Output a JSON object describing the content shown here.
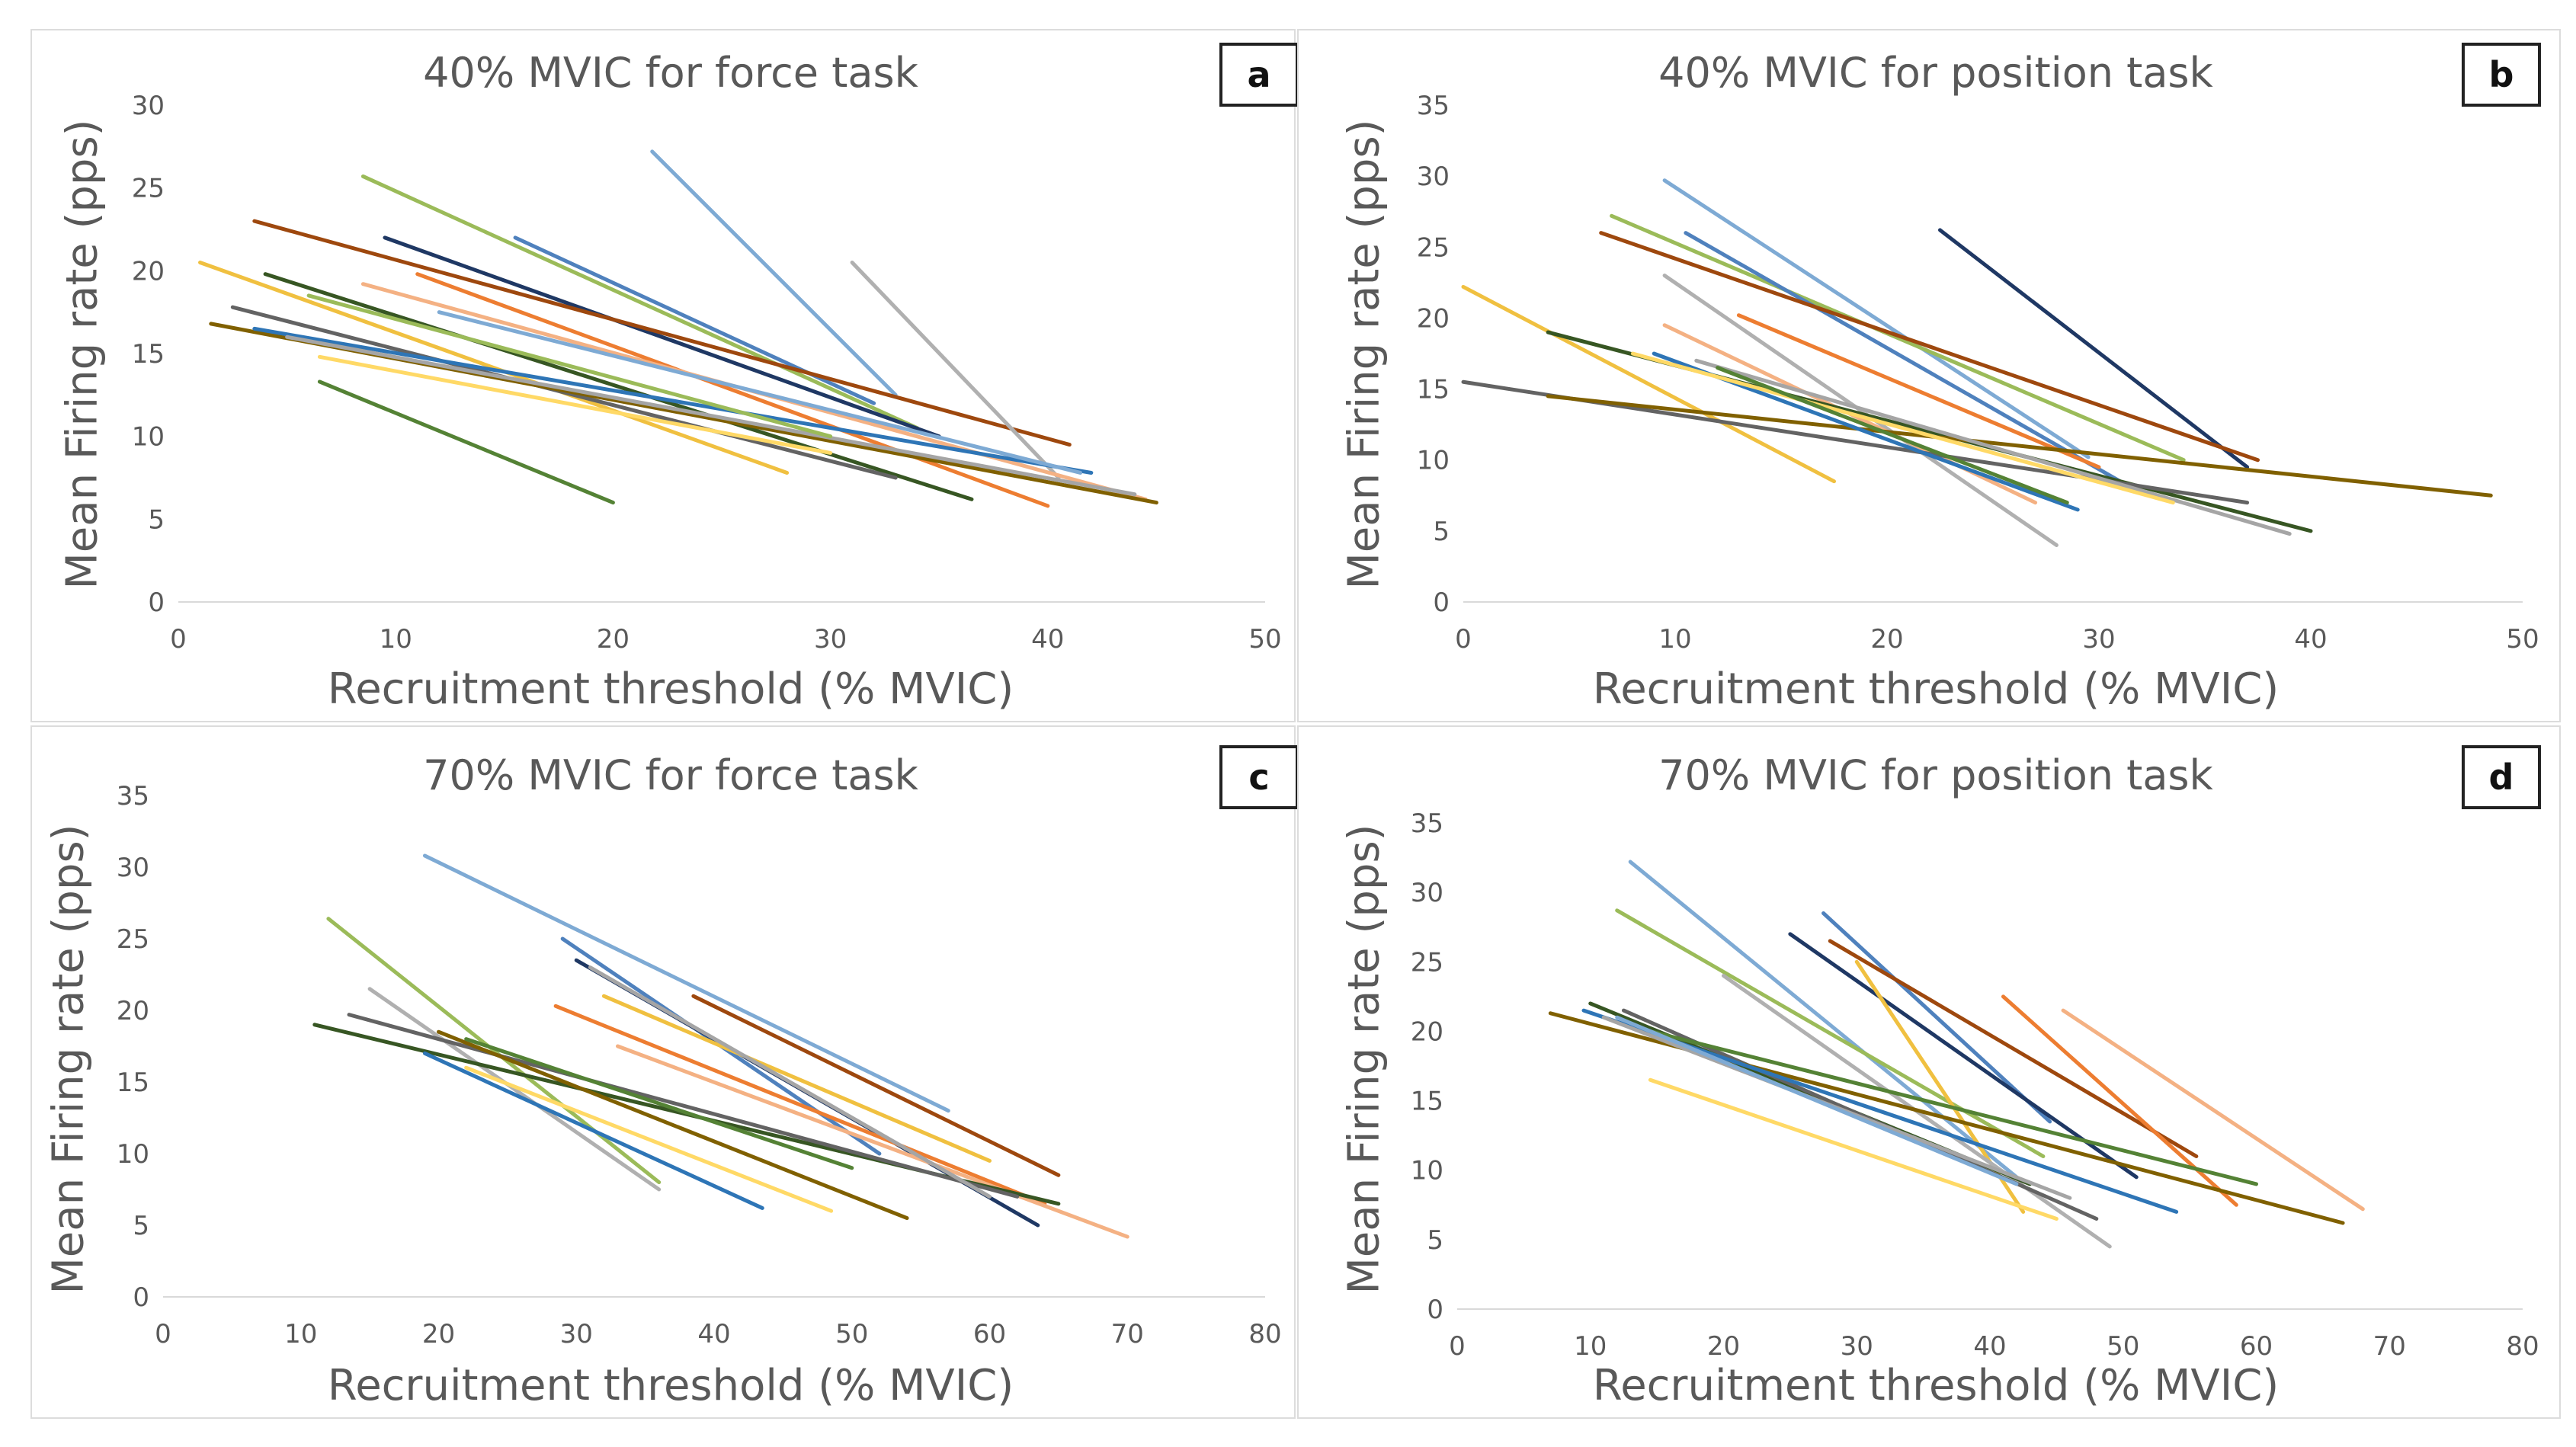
{
  "colors": [
    "#7eaad4",
    "#9bbb59",
    "#4f81bd",
    "#1f3864",
    "#9e480e",
    "#f0c040",
    "#b0b0b0",
    "#ed7d31",
    "#f4b183",
    "#375623",
    "#636363",
    "#806000",
    "#2e75b6",
    "#a5a5a5",
    "#ffd966",
    "#548235"
  ],
  "chart_data": [
    {
      "type": "line",
      "label": "a",
      "title": "40% MVIC for force task",
      "xlabel": "Recruitment threshold (% MVIC)",
      "ylabel": "Mean Firing rate (pps)",
      "xlim": [
        0,
        50
      ],
      "ylim": [
        0,
        30
      ],
      "xticks": [
        0,
        10,
        20,
        30,
        40,
        50
      ],
      "yticks": [
        0,
        5,
        10,
        15,
        20,
        25,
        30
      ],
      "series": [
        {
          "x": [
            21.8,
            33.0
          ],
          "y": [
            27.2,
            12.5
          ]
        },
        {
          "x": [
            8.5,
            34.0
          ],
          "y": [
            25.7,
            10.5
          ]
        },
        {
          "x": [
            15.5,
            32.0
          ],
          "y": [
            22.0,
            12.0
          ]
        },
        {
          "x": [
            9.5,
            35.0
          ],
          "y": [
            22.0,
            10.0
          ]
        },
        {
          "x": [
            3.5,
            41.0
          ],
          "y": [
            23.0,
            9.5
          ]
        },
        {
          "x": [
            1.0,
            28.0
          ],
          "y": [
            20.5,
            7.8
          ]
        },
        {
          "x": [
            31.0,
            40.5
          ],
          "y": [
            20.5,
            7.5
          ]
        },
        {
          "x": [
            11.0,
            40.0
          ],
          "y": [
            19.8,
            5.8
          ]
        },
        {
          "x": [
            8.5,
            44.5
          ],
          "y": [
            19.2,
            6.2
          ]
        },
        {
          "x": [
            4.0,
            36.5
          ],
          "y": [
            19.8,
            6.2
          ]
        },
        {
          "x": [
            2.5,
            33.0
          ],
          "y": [
            17.8,
            7.5
          ]
        },
        {
          "x": [
            1.5,
            45.0
          ],
          "y": [
            16.8,
            6.0
          ]
        },
        {
          "x": [
            3.5,
            42.0
          ],
          "y": [
            16.5,
            7.8
          ]
        },
        {
          "x": [
            5.0,
            44.0
          ],
          "y": [
            16.0,
            6.5
          ]
        },
        {
          "x": [
            6.5,
            30.0
          ],
          "y": [
            14.8,
            9.0
          ]
        },
        {
          "x": [
            6.5,
            20.0
          ],
          "y": [
            13.3,
            6.0
          ]
        },
        {
          "x": [
            12.0,
            41.5
          ],
          "y": [
            17.5,
            7.8
          ]
        },
        {
          "x": [
            6.0,
            30.0
          ],
          "y": [
            18.5,
            10.0
          ]
        }
      ]
    },
    {
      "type": "line",
      "label": "b",
      "title": "40% MVIC for position task",
      "xlabel": "Recruitment threshold (% MVIC)",
      "ylabel": "Mean Firing rate (pps)",
      "xlim": [
        0,
        50
      ],
      "ylim": [
        0,
        35
      ],
      "xticks": [
        0,
        10,
        20,
        30,
        40,
        50
      ],
      "yticks": [
        0,
        5,
        10,
        15,
        20,
        25,
        30,
        35
      ],
      "series": [
        {
          "x": [
            9.5,
            29.5
          ],
          "y": [
            29.7,
            10.2
          ]
        },
        {
          "x": [
            7.0,
            34.0
          ],
          "y": [
            27.2,
            10.0
          ]
        },
        {
          "x": [
            10.5,
            31.0
          ],
          "y": [
            26.0,
            8.5
          ]
        },
        {
          "x": [
            22.5,
            37.0
          ],
          "y": [
            26.2,
            9.5
          ]
        },
        {
          "x": [
            6.5,
            37.5
          ],
          "y": [
            26.0,
            10.0
          ]
        },
        {
          "x": [
            0.0,
            17.5
          ],
          "y": [
            22.2,
            8.5
          ]
        },
        {
          "x": [
            9.5,
            28.0
          ],
          "y": [
            23.0,
            4.0
          ]
        },
        {
          "x": [
            13.0,
            30.0
          ],
          "y": [
            20.2,
            9.5
          ]
        },
        {
          "x": [
            9.5,
            27.0
          ],
          "y": [
            19.5,
            7.0
          ]
        },
        {
          "x": [
            4.0,
            40.0
          ],
          "y": [
            19.0,
            5.0
          ]
        },
        {
          "x": [
            0.0,
            37.0
          ],
          "y": [
            15.5,
            7.0
          ]
        },
        {
          "x": [
            4.0,
            48.5
          ],
          "y": [
            14.5,
            7.5
          ]
        },
        {
          "x": [
            9.0,
            29.0
          ],
          "y": [
            17.5,
            6.5
          ]
        },
        {
          "x": [
            11.0,
            39.0
          ],
          "y": [
            17.0,
            4.8
          ]
        },
        {
          "x": [
            8.0,
            33.5
          ],
          "y": [
            17.5,
            7.0
          ]
        },
        {
          "x": [
            12.0,
            28.5
          ],
          "y": [
            16.5,
            7.0
          ]
        }
      ]
    },
    {
      "type": "line",
      "label": "c",
      "title": "70% MVIC for force task",
      "xlabel": "Recruitment threshold (% MVIC)",
      "ylabel": "Mean Firing rate (pps)",
      "xlim": [
        0,
        80
      ],
      "ylim": [
        0,
        35
      ],
      "xticks": [
        0,
        10,
        20,
        30,
        40,
        50,
        60,
        70,
        80
      ],
      "yticks": [
        0,
        5,
        10,
        15,
        20,
        25,
        30,
        35
      ],
      "series": [
        {
          "x": [
            19.0,
            57.0
          ],
          "y": [
            30.8,
            13.0
          ]
        },
        {
          "x": [
            12.0,
            36.0
          ],
          "y": [
            26.4,
            8.0
          ]
        },
        {
          "x": [
            29.0,
            52.0
          ],
          "y": [
            25.0,
            10.0
          ]
        },
        {
          "x": [
            30.0,
            63.5
          ],
          "y": [
            23.5,
            5.0
          ]
        },
        {
          "x": [
            38.5,
            65.0
          ],
          "y": [
            21.0,
            8.5
          ]
        },
        {
          "x": [
            32.0,
            60.0
          ],
          "y": [
            21.0,
            9.5
          ]
        },
        {
          "x": [
            15.0,
            36.0
          ],
          "y": [
            21.5,
            7.5
          ]
        },
        {
          "x": [
            28.5,
            64.0
          ],
          "y": [
            20.3,
            6.5
          ]
        },
        {
          "x": [
            33.0,
            70.0
          ],
          "y": [
            17.5,
            4.2
          ]
        },
        {
          "x": [
            11.0,
            65.0
          ],
          "y": [
            19.0,
            6.5
          ]
        },
        {
          "x": [
            13.5,
            62.0
          ],
          "y": [
            19.7,
            7.0
          ]
        },
        {
          "x": [
            20.0,
            54.0
          ],
          "y": [
            18.5,
            5.5
          ]
        },
        {
          "x": [
            19.0,
            43.5
          ],
          "y": [
            17.0,
            6.2
          ]
        },
        {
          "x": [
            31.0,
            60.0
          ],
          "y": [
            23.0,
            7.0
          ]
        },
        {
          "x": [
            22.0,
            48.5
          ],
          "y": [
            16.0,
            6.0
          ]
        },
        {
          "x": [
            22.0,
            50.0
          ],
          "y": [
            18.0,
            9.0
          ]
        }
      ]
    },
    {
      "type": "line",
      "label": "d",
      "title": "70% MVIC for position task",
      "xlabel": "Recruitment threshold (% MVIC)",
      "ylabel": "Mean Firing rate (pps)",
      "xlim": [
        0,
        80
      ],
      "ylim": [
        0,
        35
      ],
      "xticks": [
        0,
        10,
        20,
        30,
        40,
        50,
        60,
        70,
        80
      ],
      "yticks": [
        0,
        5,
        10,
        15,
        20,
        25,
        30,
        35
      ],
      "series": [
        {
          "x": [
            13.0,
            42.0
          ],
          "y": [
            32.2,
            9.5
          ]
        },
        {
          "x": [
            12.0,
            44.0
          ],
          "y": [
            28.7,
            11.0
          ]
        },
        {
          "x": [
            27.5,
            44.5
          ],
          "y": [
            28.5,
            13.5
          ]
        },
        {
          "x": [
            25.0,
            51.0
          ],
          "y": [
            27.0,
            9.5
          ]
        },
        {
          "x": [
            28.0,
            55.5
          ],
          "y": [
            26.5,
            11.0
          ]
        },
        {
          "x": [
            30.0,
            42.5
          ],
          "y": [
            25.0,
            7.0
          ]
        },
        {
          "x": [
            20.0,
            49.0
          ],
          "y": [
            24.0,
            4.5
          ]
        },
        {
          "x": [
            41.0,
            58.5
          ],
          "y": [
            22.5,
            7.5
          ]
        },
        {
          "x": [
            45.5,
            68.0
          ],
          "y": [
            21.5,
            7.2
          ]
        },
        {
          "x": [
            10.0,
            43.0
          ],
          "y": [
            22.0,
            9.0
          ]
        },
        {
          "x": [
            12.5,
            48.0
          ],
          "y": [
            21.5,
            6.5
          ]
        },
        {
          "x": [
            7.0,
            66.5
          ],
          "y": [
            21.3,
            6.2
          ]
        },
        {
          "x": [
            9.5,
            54.0
          ],
          "y": [
            21.5,
            7.0
          ]
        },
        {
          "x": [
            11.0,
            46.0
          ],
          "y": [
            21.0,
            8.0
          ]
        },
        {
          "x": [
            14.5,
            45.0
          ],
          "y": [
            16.5,
            6.5
          ]
        },
        {
          "x": [
            14.5,
            60.0
          ],
          "y": [
            20.0,
            9.0
          ]
        },
        {
          "x": [
            12.0,
            42.0
          ],
          "y": [
            21.0,
            9.0
          ]
        }
      ]
    }
  ]
}
